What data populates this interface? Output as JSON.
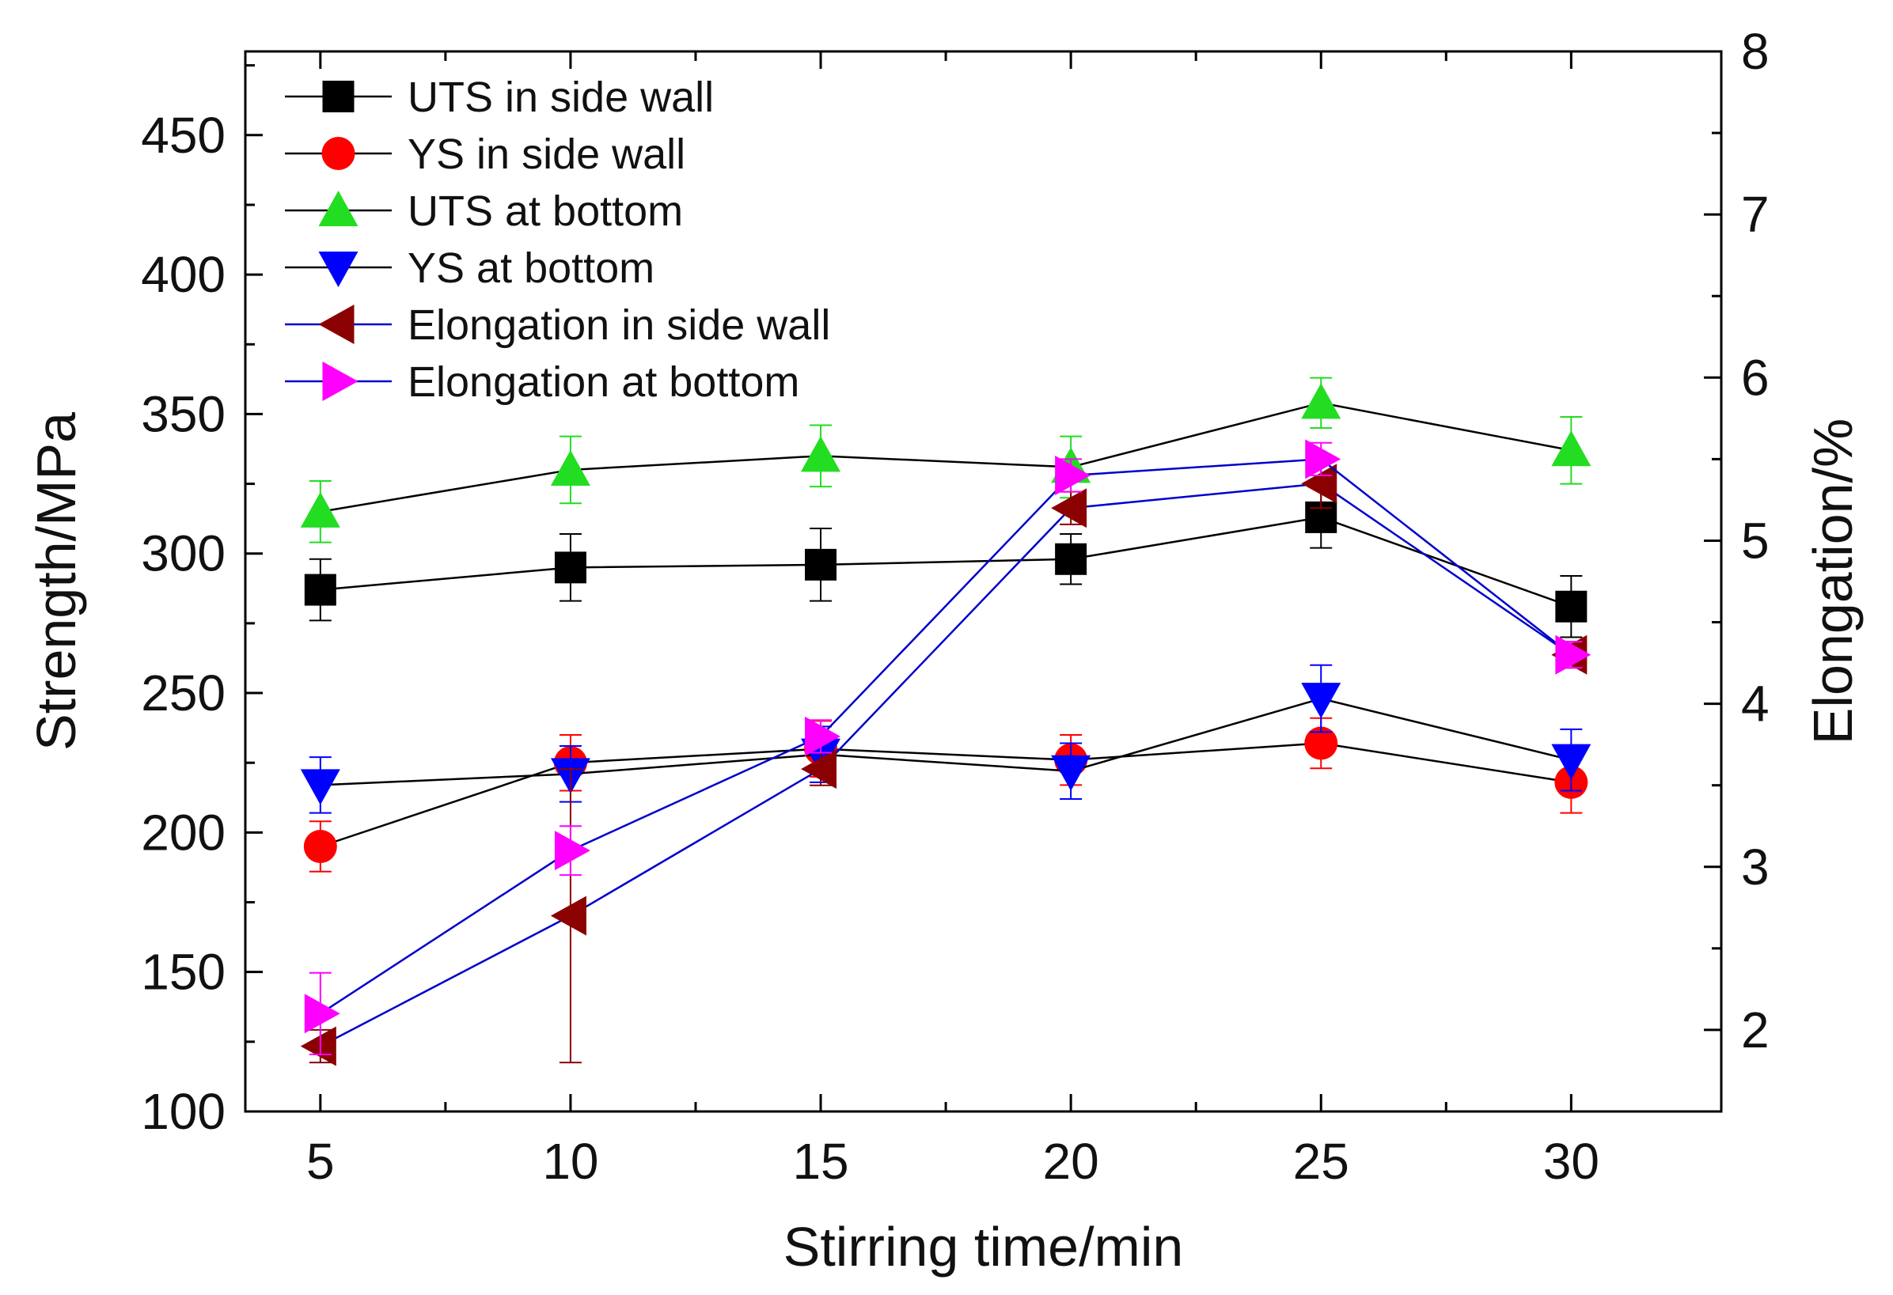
{
  "chart_data": {
    "type": "line",
    "title": "",
    "xlabel": "Stirring time/min",
    "ylabel": "Strength/MPa",
    "y2label": "Elongation/%",
    "x": [
      5,
      10,
      15,
      20,
      25,
      30
    ],
    "xlim": [
      3.5,
      33
    ],
    "ylim": [
      100,
      480
    ],
    "y2lim": [
      1.5,
      8
    ],
    "xticks": [
      5,
      10,
      15,
      20,
      25,
      30
    ],
    "yticks": [
      100,
      150,
      200,
      250,
      300,
      350,
      400,
      450
    ],
    "y2ticks": [
      2,
      3,
      4,
      5,
      6,
      7,
      8
    ],
    "grid": false,
    "legend_position": "top-left",
    "series": [
      {
        "name": "UTS in side wall",
        "axis": "left",
        "marker": "square",
        "marker_color": "#000000",
        "line_color": "#000000",
        "values": [
          287,
          295,
          296,
          298,
          313,
          281
        ],
        "errors": [
          11,
          12,
          13,
          9,
          11,
          11
        ]
      },
      {
        "name": "YS in side wall",
        "axis": "left",
        "marker": "circle",
        "marker_color": "#ff0000",
        "line_color": "#000000",
        "values": [
          195,
          225,
          230,
          226,
          232,
          218
        ],
        "errors": [
          9,
          10,
          10,
          9,
          9,
          11
        ]
      },
      {
        "name": "UTS at bottom",
        "axis": "left",
        "marker": "triangle-up",
        "marker_color": "#22dd22",
        "line_color": "#000000",
        "values": [
          315,
          330,
          335,
          331,
          354,
          337
        ],
        "errors": [
          11,
          12,
          11,
          11,
          9,
          12
        ]
      },
      {
        "name": "YS at bottom",
        "axis": "left",
        "marker": "triangle-down",
        "marker_color": "#0000ff",
        "line_color": "#000000",
        "values": [
          217,
          221,
          228,
          222,
          248,
          226
        ],
        "errors": [
          10,
          10,
          10,
          10,
          12,
          11
        ]
      },
      {
        "name": "Elongation in side wall",
        "axis": "right",
        "marker": "triangle-left",
        "marker_color": "#8b0000",
        "line_color": "#0000cc",
        "values": [
          1.9,
          2.7,
          3.6,
          5.2,
          5.35,
          4.3
        ],
        "errors": [
          0.1,
          0.9,
          0.1,
          0.1,
          0.15,
          0.08
        ]
      },
      {
        "name": "Elongation at bottom",
        "axis": "right",
        "marker": "triangle-right",
        "marker_color": "#ff00ff",
        "line_color": "#0000cc",
        "values": [
          2.1,
          3.1,
          3.8,
          5.4,
          5.5,
          4.3
        ],
        "errors": [
          0.25,
          0.15,
          0.1,
          0.1,
          0.1,
          0.08
        ]
      }
    ]
  }
}
